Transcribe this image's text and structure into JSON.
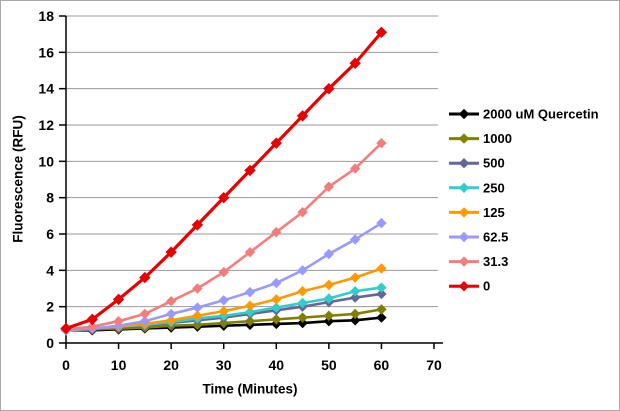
{
  "window": {
    "background": "#FFFFFF",
    "border_color": "#A9A9A9"
  },
  "chart_data": {
    "type": "line",
    "title": "",
    "xlabel": "Time (Minutes)",
    "ylabel": "Fluorescence (RFU)",
    "xlim": [
      0,
      70
    ],
    "ylim": [
      0,
      18
    ],
    "x_ticks": [
      0,
      10,
      20,
      30,
      40,
      50,
      60,
      70
    ],
    "y_ticks": [
      0,
      2,
      4,
      6,
      8,
      10,
      12,
      14,
      16,
      18
    ],
    "grid": "horizontal",
    "gridline_color": "#999999",
    "axis_color": "#000000",
    "legend_position": "right",
    "marker": "diamond",
    "x": [
      0,
      5,
      10,
      15,
      20,
      25,
      30,
      35,
      40,
      45,
      50,
      55,
      60
    ],
    "series": [
      {
        "name": "2000 uM Quercetin",
        "color": "#000000",
        "values": [
          0.7,
          0.7,
          0.75,
          0.8,
          0.85,
          0.9,
          0.95,
          1.0,
          1.05,
          1.1,
          1.2,
          1.25,
          1.4
        ]
      },
      {
        "name": "1000",
        "color": "#808000",
        "values": [
          0.7,
          0.75,
          0.8,
          0.85,
          0.95,
          1.0,
          1.1,
          1.2,
          1.3,
          1.4,
          1.5,
          1.6,
          1.85
        ]
      },
      {
        "name": "500",
        "color": "#666699",
        "values": [
          0.7,
          0.75,
          0.85,
          0.95,
          1.1,
          1.25,
          1.4,
          1.6,
          1.8,
          2.0,
          2.25,
          2.5,
          2.7
        ]
      },
      {
        "name": "250",
        "color": "#33CCCC",
        "values": [
          0.7,
          0.8,
          0.9,
          1.0,
          1.15,
          1.35,
          1.5,
          1.7,
          1.95,
          2.2,
          2.45,
          2.85,
          3.05
        ]
      },
      {
        "name": "125",
        "color": "#FF9900",
        "values": [
          0.7,
          0.8,
          0.9,
          1.05,
          1.25,
          1.5,
          1.75,
          2.05,
          2.4,
          2.85,
          3.2,
          3.6,
          4.1
        ]
      },
      {
        "name": "62.5",
        "color": "#9999FF",
        "values": [
          0.7,
          0.8,
          0.95,
          1.2,
          1.6,
          1.95,
          2.35,
          2.8,
          3.3,
          4.0,
          4.9,
          5.7,
          6.6
        ]
      },
      {
        "name": "31.3",
        "color": "#F27D7D",
        "values": [
          0.75,
          0.9,
          1.2,
          1.6,
          2.3,
          3.0,
          3.9,
          5.0,
          6.1,
          7.2,
          8.6,
          9.6,
          11.0
        ]
      },
      {
        "name": "0",
        "color": "#E60000",
        "values": [
          0.8,
          1.3,
          2.4,
          3.6,
          5.0,
          6.5,
          8.0,
          9.5,
          11.0,
          12.5,
          14.0,
          15.4,
          17.1
        ]
      }
    ]
  }
}
